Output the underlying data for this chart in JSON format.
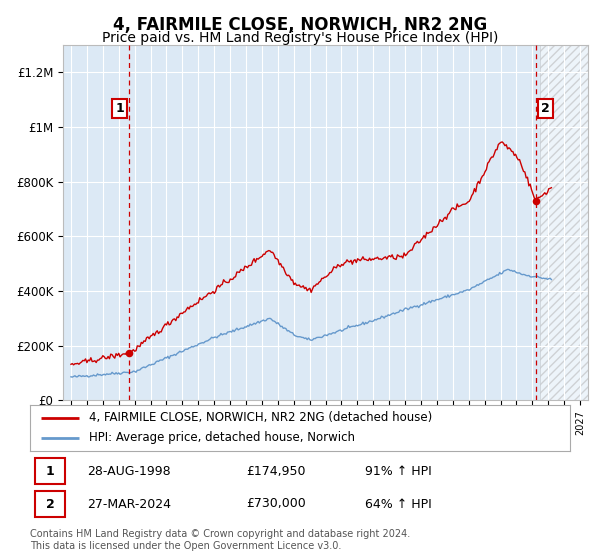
{
  "title": "4, FAIRMILE CLOSE, NORWICH, NR2 2NG",
  "subtitle": "Price paid vs. HM Land Registry's House Price Index (HPI)",
  "title_fontsize": 12,
  "subtitle_fontsize": 10,
  "background_color": "#ffffff",
  "plot_bg_color": "#dce9f5",
  "ylim": [
    0,
    1300000
  ],
  "xlim_start": 1994.5,
  "xlim_end": 2027.5,
  "yticks": [
    0,
    200000,
    400000,
    600000,
    800000,
    1000000,
    1200000
  ],
  "ytick_labels": [
    "£0",
    "£200K",
    "£400K",
    "£600K",
    "£800K",
    "£1M",
    "£1.2M"
  ],
  "xtick_years": [
    1995,
    1996,
    1997,
    1998,
    1999,
    2000,
    2001,
    2002,
    2003,
    2004,
    2005,
    2006,
    2007,
    2008,
    2009,
    2010,
    2011,
    2012,
    2013,
    2014,
    2015,
    2016,
    2017,
    2018,
    2019,
    2020,
    2021,
    2022,
    2023,
    2024,
    2025,
    2026,
    2027
  ],
  "sale1_x": 1998.66,
  "sale1_y": 174950,
  "sale1_label": "1",
  "sale1_date": "28-AUG-1998",
  "sale1_price": "£174,950",
  "sale1_hpi": "91% ↑ HPI",
  "sale2_x": 2024.23,
  "sale2_y": 730000,
  "sale2_label": "2",
  "sale2_date": "27-MAR-2024",
  "sale2_price": "£730,000",
  "sale2_hpi": "64% ↑ HPI",
  "red_line_color": "#cc0000",
  "blue_line_color": "#6699cc",
  "hatch_start": 2024.5,
  "legend_line1": "4, FAIRMILE CLOSE, NORWICH, NR2 2NG (detached house)",
  "legend_line2": "HPI: Average price, detached house, Norwich",
  "footer_text": "Contains HM Land Registry data © Crown copyright and database right 2024.\nThis data is licensed under the Open Government Licence v3.0.",
  "grid_color": "#ffffff",
  "dashed_line_color": "#cc0000"
}
